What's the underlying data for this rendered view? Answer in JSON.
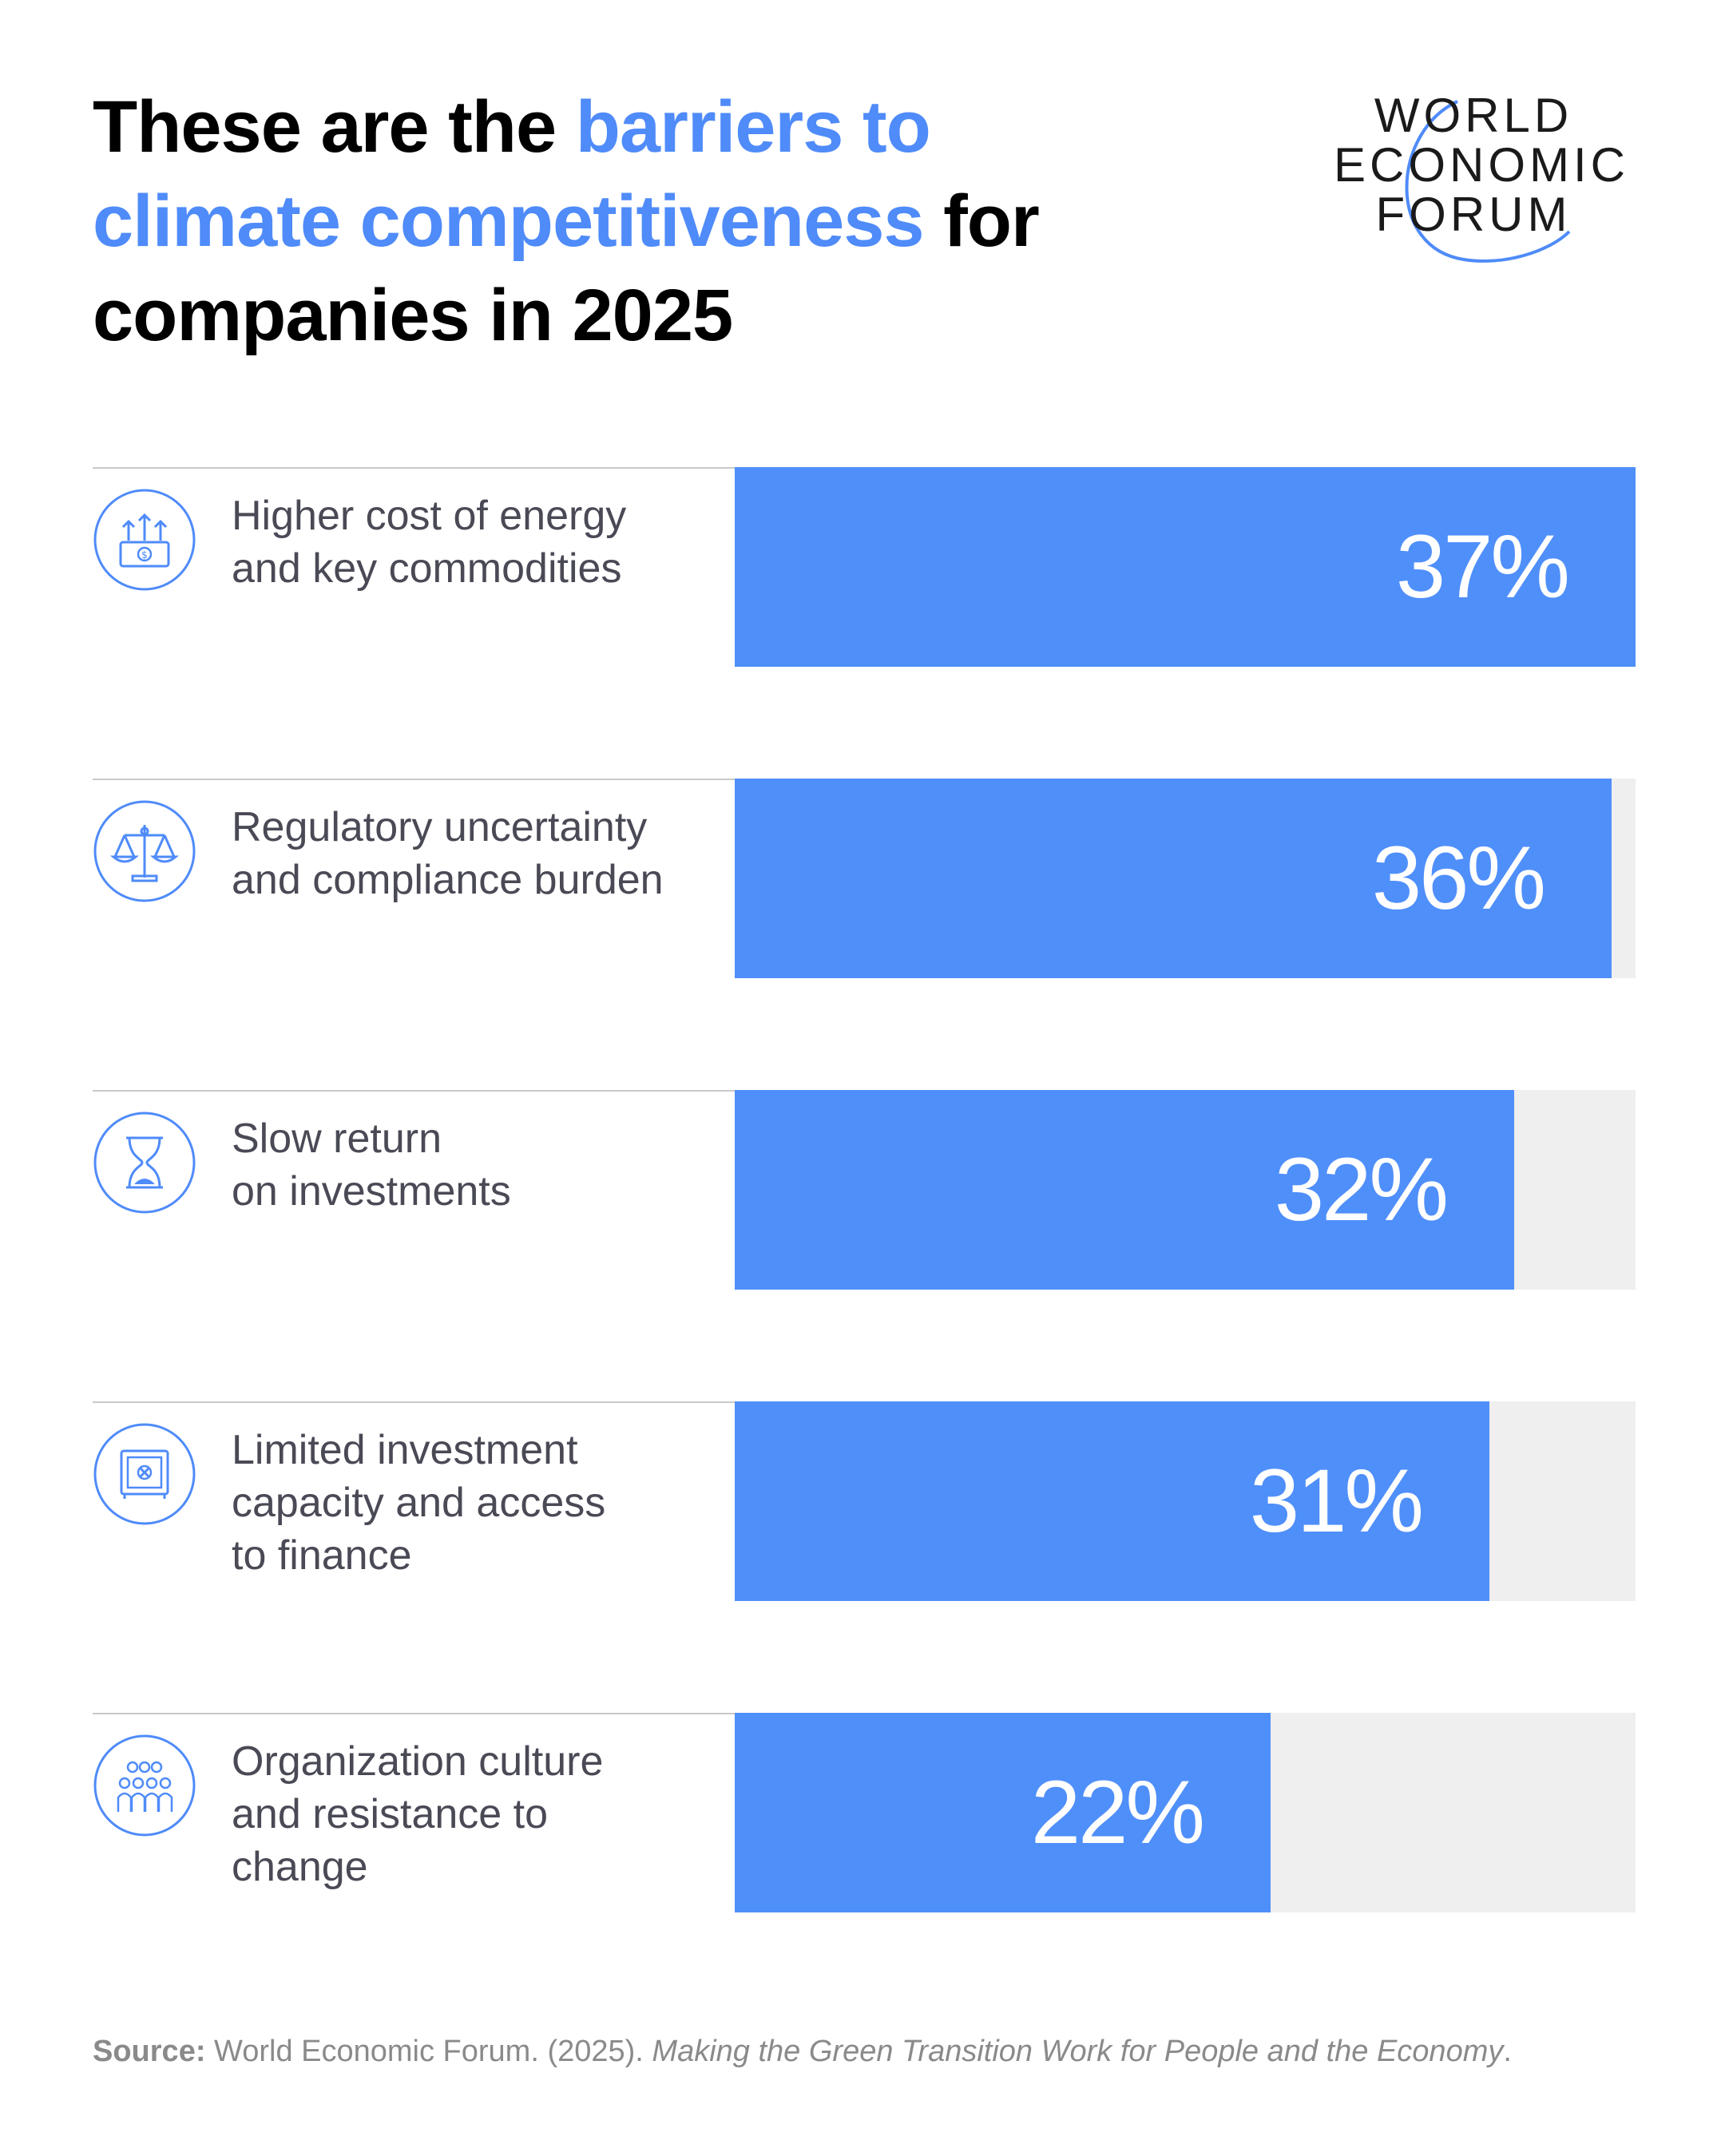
{
  "title": {
    "part1": "These are the ",
    "accent": "barriers to climate competitiveness",
    "part2": " for companies in 2025"
  },
  "logo": {
    "line1": "WORLD",
    "line2": "ECONOMIC",
    "line3": "FORUM"
  },
  "colors": {
    "accent": "#4f8bf9",
    "bar": "#4f8ffa",
    "track": "#efefef",
    "label": "#494a55"
  },
  "chart_data": {
    "type": "bar",
    "orientation": "horizontal",
    "title": "These are the barriers to climate competitiveness for companies in 2025",
    "xlim": [
      0,
      37
    ],
    "categories": [
      "Higher cost of energy and key commodities",
      "Regulatory uncertainty and compliance burden",
      "Slow return on investments",
      "Limited investment capacity and access to finance",
      "Organization culture and resistance to change"
    ],
    "values": [
      37,
      36,
      32,
      31,
      22
    ],
    "value_labels": [
      "37%",
      "36%",
      "32%",
      "31%",
      "22%"
    ],
    "label_lines": [
      [
        "Higher cost of energy",
        "and key commodities"
      ],
      [
        "Regulatory uncertainty",
        "and compliance burden"
      ],
      [
        "Slow return",
        "on investments"
      ],
      [
        "Limited investment",
        "capacity and access",
        "to finance"
      ],
      [
        "Organization culture",
        "and resistance to",
        "change"
      ]
    ],
    "icons": [
      "money-arrows-icon",
      "scales-icon",
      "hourglass-icon",
      "safe-icon",
      "group-people-icon"
    ]
  },
  "source": {
    "label": "Source:",
    "text": " World Economic Forum. (2025). ",
    "title": "Making the Green Transition Work for People and the Economy",
    "end": "."
  }
}
